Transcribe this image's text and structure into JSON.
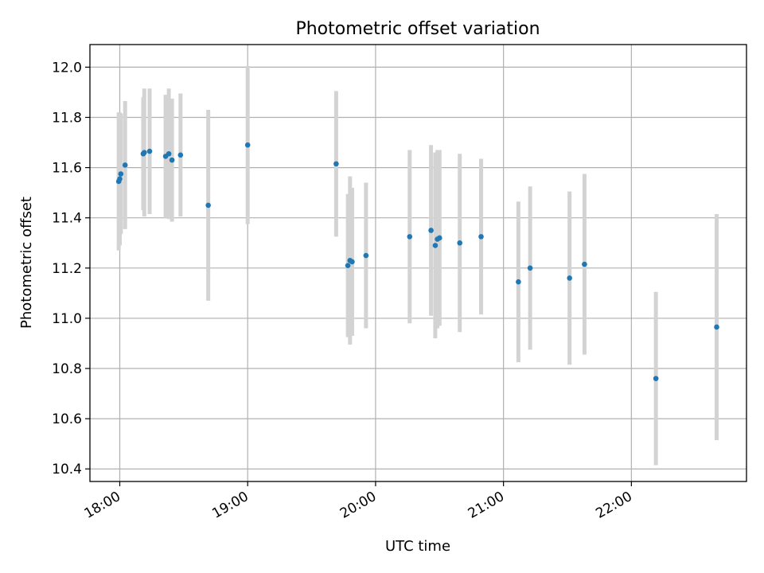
{
  "chart_data": {
    "type": "scatter",
    "title": "Photometric offset variation",
    "xlabel": "UTC time",
    "ylabel": "Photometric offset",
    "x_scale": "time",
    "xlim": [
      "17:46",
      "22:54"
    ],
    "ylim": [
      10.35,
      12.09
    ],
    "x_ticks": [
      "18:00",
      "19:00",
      "20:00",
      "21:00",
      "22:00"
    ],
    "y_ticks": [
      10.4,
      10.6,
      10.8,
      11.0,
      11.2,
      11.4,
      11.6,
      11.8,
      12.0
    ],
    "y_tick_labels": [
      "10.4",
      "10.6",
      "10.8",
      "11.0",
      "11.2",
      "11.4",
      "11.6",
      "11.8",
      "12.0"
    ],
    "grid": true,
    "x_tick_rotation": "30 degrees",
    "colors": {
      "point": "#1f77b4",
      "error_bar": "#d3d3d3",
      "grid": "#b0b0b0"
    },
    "points": [
      {
        "x": "17:59:30",
        "y": 11.545,
        "err": 0.275
      },
      {
        "x": "18:00:00",
        "y": 11.555,
        "err": 0.265
      },
      {
        "x": "18:00:30",
        "y": 11.575,
        "err": 0.24
      },
      {
        "x": "18:02:30",
        "y": 11.61,
        "err": 0.255
      },
      {
        "x": "18:11:00",
        "y": 11.655,
        "err": 0.225
      },
      {
        "x": "18:11:30",
        "y": 11.66,
        "err": 0.255
      },
      {
        "x": "18:14:00",
        "y": 11.665,
        "err": 0.25
      },
      {
        "x": "18:21:30",
        "y": 11.645,
        "err": 0.245
      },
      {
        "x": "18:23:00",
        "y": 11.655,
        "err": 0.26
      },
      {
        "x": "18:24:30",
        "y": 11.63,
        "err": 0.245
      },
      {
        "x": "18:28:30",
        "y": 11.65,
        "err": 0.245
      },
      {
        "x": "18:41:30",
        "y": 11.45,
        "err": 0.38
      },
      {
        "x": "19:00:00",
        "y": 11.69,
        "err": 0.315
      },
      {
        "x": "19:41:30",
        "y": 11.615,
        "err": 0.29
      },
      {
        "x": "19:47:00",
        "y": 11.21,
        "err": 0.285
      },
      {
        "x": "19:48:00",
        "y": 11.23,
        "err": 0.335
      },
      {
        "x": "19:49:00",
        "y": 11.225,
        "err": 0.295
      },
      {
        "x": "19:55:30",
        "y": 11.25,
        "err": 0.29
      },
      {
        "x": "20:16:00",
        "y": 11.325,
        "err": 0.345
      },
      {
        "x": "20:26:00",
        "y": 11.35,
        "err": 0.34
      },
      {
        "x": "20:28:00",
        "y": 11.29,
        "err": 0.37
      },
      {
        "x": "20:29:00",
        "y": 11.315,
        "err": 0.355
      },
      {
        "x": "20:30:00",
        "y": 11.32,
        "err": 0.35
      },
      {
        "x": "20:39:30",
        "y": 11.3,
        "err": 0.355
      },
      {
        "x": "20:49:30",
        "y": 11.325,
        "err": 0.31
      },
      {
        "x": "21:07:00",
        "y": 11.145,
        "err": 0.32
      },
      {
        "x": "21:12:30",
        "y": 11.2,
        "err": 0.325
      },
      {
        "x": "21:31:00",
        "y": 11.16,
        "err": 0.345
      },
      {
        "x": "21:38:00",
        "y": 11.215,
        "err": 0.36
      },
      {
        "x": "22:11:30",
        "y": 10.76,
        "err": 0.345
      },
      {
        "x": "22:40:00",
        "y": 10.965,
        "err": 0.45
      }
    ]
  }
}
